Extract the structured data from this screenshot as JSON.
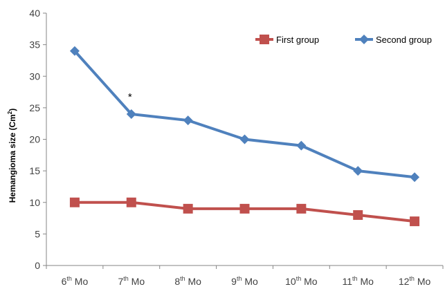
{
  "chart_data": {
    "type": "line",
    "categories": [
      "6th Mo",
      "7th Mo",
      "8th Mo",
      "9th Mo",
      "10th Mo",
      "11th Mo",
      "12th Mo"
    ],
    "category_labels": [
      {
        "num": "6",
        "sup": "th",
        "rest": " Mo"
      },
      {
        "num": "7",
        "sup": "th",
        "rest": " Mo"
      },
      {
        "num": "8",
        "sup": "th",
        "rest": " Mo"
      },
      {
        "num": "9",
        "sup": "th",
        "rest": " Mo"
      },
      {
        "num": "10",
        "sup": "th",
        "rest": " Mo"
      },
      {
        "num": "11",
        "sup": "th",
        "rest": " Mo"
      },
      {
        "num": "12",
        "sup": "th",
        "rest": " Mo"
      }
    ],
    "series": [
      {
        "name": "First group",
        "values": [
          10,
          10,
          9,
          9,
          9,
          8,
          7
        ],
        "color": "#c0504d",
        "marker": "square"
      },
      {
        "name": "Second group",
        "values": [
          34,
          24,
          23,
          20,
          19,
          15,
          14
        ],
        "color": "#4f81bd",
        "marker": "diamond"
      }
    ],
    "ylabel": {
      "main": "Hemangioma size (Cm",
      "sup": "2",
      "close": ")"
    },
    "ylim": [
      0,
      40
    ],
    "yticks": [
      0,
      5,
      10,
      15,
      20,
      25,
      30,
      35,
      40
    ],
    "grid": false,
    "legend": "top-right",
    "annotations": [
      {
        "text": "*",
        "category": "7th Mo",
        "series": "Second group"
      }
    ]
  }
}
